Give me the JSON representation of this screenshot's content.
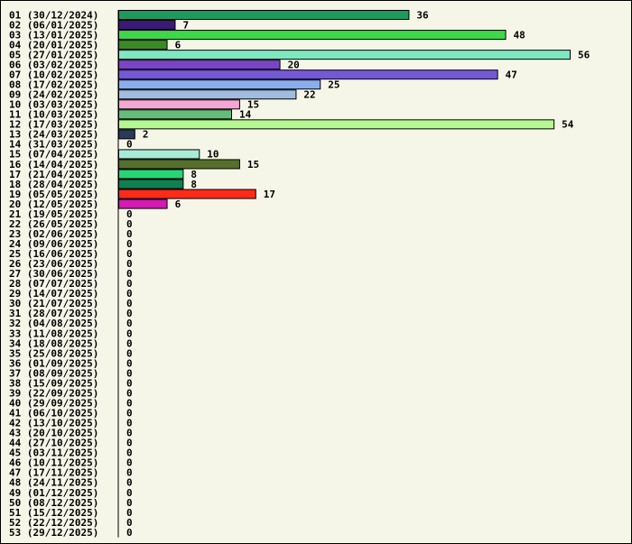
{
  "chart_data": {
    "type": "bar",
    "orientation": "horizontal",
    "title": "",
    "xlabel": "",
    "ylabel": "",
    "xlim": [
      0,
      56
    ],
    "grid": false,
    "legend": "none",
    "categories": [
      "01 (30/12/2024)",
      "02 (06/01/2025)",
      "03 (13/01/2025)",
      "04 (20/01/2025)",
      "05 (27/01/2025)",
      "06 (03/02/2025)",
      "07 (10/02/2025)",
      "08 (17/02/2025)",
      "09 (24/02/2025)",
      "10 (03/03/2025)",
      "11 (10/03/2025)",
      "12 (17/03/2025)",
      "13 (24/03/2025)",
      "14 (31/03/2025)",
      "15 (07/04/2025)",
      "16 (14/04/2025)",
      "17 (21/04/2025)",
      "18 (28/04/2025)",
      "19 (05/05/2025)",
      "20 (12/05/2025)",
      "21 (19/05/2025)",
      "22 (26/05/2025)",
      "23 (02/06/2025)",
      "24 (09/06/2025)",
      "25 (16/06/2025)",
      "26 (23/06/2025)",
      "27 (30/06/2025)",
      "28 (07/07/2025)",
      "29 (14/07/2025)",
      "30 (21/07/2025)",
      "31 (28/07/2025)",
      "32 (04/08/2025)",
      "33 (11/08/2025)",
      "34 (18/08/2025)",
      "35 (25/08/2025)",
      "36 (01/09/2025)",
      "37 (08/09/2025)",
      "38 (15/09/2025)",
      "39 (22/09/2025)",
      "40 (29/09/2025)",
      "41 (06/10/2025)",
      "42 (13/10/2025)",
      "43 (20/10/2025)",
      "44 (27/10/2025)",
      "45 (03/11/2025)",
      "46 (10/11/2025)",
      "47 (17/11/2025)",
      "48 (24/11/2025)",
      "49 (01/12/2025)",
      "50 (08/12/2025)",
      "51 (15/12/2025)",
      "52 (22/12/2025)",
      "53 (29/12/2025)"
    ],
    "values": [
      36,
      7,
      48,
      6,
      56,
      20,
      47,
      25,
      22,
      15,
      14,
      54,
      2,
      0,
      10,
      15,
      8,
      8,
      17,
      6,
      0,
      0,
      0,
      0,
      0,
      0,
      0,
      0,
      0,
      0,
      0,
      0,
      0,
      0,
      0,
      0,
      0,
      0,
      0,
      0,
      0,
      0,
      0,
      0,
      0,
      0,
      0,
      0,
      0,
      0,
      0,
      0,
      0
    ],
    "colors": [
      "#1e9a5e",
      "#3b1a78",
      "#3fd64a",
      "#3a8a26",
      "#7ee8c0",
      "#7b44c8",
      "#7458d8",
      "#88aef0",
      "#a0bce0",
      "#f6a6d2",
      "#64be78",
      "#b4f890",
      "#2a3a5a",
      "#ffffff",
      "#a8ecd8",
      "#56702c",
      "#26d676",
      "#108050",
      "#ff2a1a",
      "#d41ab4",
      "#ffffff",
      "#ffffff",
      "#ffffff",
      "#ffffff",
      "#ffffff",
      "#ffffff",
      "#ffffff",
      "#ffffff",
      "#ffffff",
      "#ffffff",
      "#ffffff",
      "#ffffff",
      "#ffffff",
      "#ffffff",
      "#ffffff",
      "#ffffff",
      "#ffffff",
      "#ffffff",
      "#ffffff",
      "#ffffff",
      "#ffffff",
      "#ffffff",
      "#ffffff",
      "#ffffff",
      "#ffffff",
      "#ffffff",
      "#ffffff",
      "#ffffff",
      "#ffffff",
      "#ffffff",
      "#ffffff",
      "#ffffff",
      "#ffffff"
    ],
    "background_color": "#f5f5e8"
  }
}
